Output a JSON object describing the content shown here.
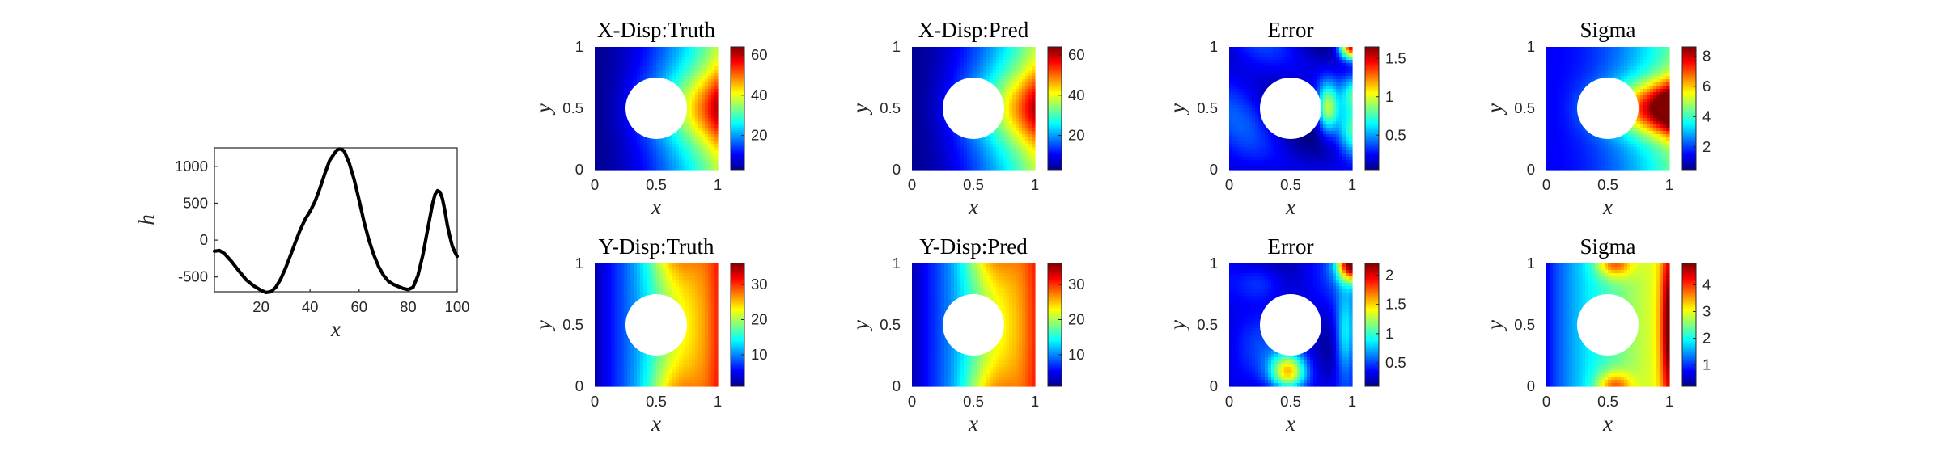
{
  "colors": {
    "line": "#000000",
    "axis": "#262626",
    "hole": "#ffffff",
    "colormap": "jet"
  },
  "chart_data": [
    {
      "type": "line",
      "title": "",
      "xlabel": "x",
      "ylabel": "h",
      "xlim": [
        1,
        100
      ],
      "ylim": [
        -700,
        1250
      ],
      "xticks": [
        "20",
        "40",
        "60",
        "80",
        "100"
      ],
      "yticks": [
        "-500",
        "0",
        "500",
        "1000"
      ],
      "grid": false,
      "series": [
        {
          "x": [
            1,
            3,
            5,
            8,
            11,
            14,
            17,
            20,
            22,
            24,
            26,
            28,
            30,
            32,
            34,
            36,
            38,
            40,
            42,
            44,
            46,
            48,
            50,
            51,
            52,
            53,
            54,
            56,
            58,
            60,
            62,
            64,
            66,
            68,
            70,
            72,
            74,
            76,
            78,
            80,
            82,
            84,
            86,
            88,
            90,
            91,
            92,
            93,
            94,
            95,
            96,
            97,
            98,
            99,
            100
          ],
          "y": [
            -150,
            -140,
            -180,
            -290,
            -420,
            -540,
            -620,
            -680,
            -710,
            -700,
            -640,
            -530,
            -380,
            -210,
            -30,
            140,
            280,
            390,
            520,
            700,
            900,
            1080,
            1180,
            1220,
            1235,
            1230,
            1200,
            1040,
            820,
            540,
            250,
            0,
            -200,
            -360,
            -480,
            -560,
            -600,
            -630,
            -655,
            -670,
            -640,
            -480,
            -200,
            150,
            500,
            620,
            670,
            650,
            560,
            400,
            200,
            50,
            -80,
            -160,
            -220
          ]
        }
      ]
    },
    {
      "type": "heatmap",
      "title": "X-Disp:Truth",
      "xlabel": "x",
      "ylabel": "y",
      "xlim": [
        0,
        1
      ],
      "ylim": [
        0,
        1
      ],
      "xticks": [
        "0",
        "0.5",
        "1"
      ],
      "yticks": [
        "0",
        "0.5",
        "1"
      ],
      "colorbar": {
        "range": [
          3,
          64
        ],
        "ticks": [
          "20",
          "40",
          "60"
        ],
        "tick_values": [
          20,
          40,
          60
        ]
      },
      "hole": {
        "center": [
          0.5,
          0.5
        ],
        "radius": 0.25
      }
    },
    {
      "type": "heatmap",
      "title": "X-Disp:Pred",
      "xlabel": "x",
      "ylabel": "y",
      "xlim": [
        0,
        1
      ],
      "ylim": [
        0,
        1
      ],
      "xticks": [
        "0",
        "0.5",
        "1"
      ],
      "yticks": [
        "0",
        "0.5",
        "1"
      ],
      "colorbar": {
        "range": [
          3,
          64
        ],
        "ticks": [
          "20",
          "40",
          "60"
        ],
        "tick_values": [
          20,
          40,
          60
        ]
      },
      "hole": {
        "center": [
          0.5,
          0.5
        ],
        "radius": 0.25
      }
    },
    {
      "type": "heatmap",
      "title": "Error",
      "xlabel": "x",
      "ylabel": "y",
      "xlim": [
        0,
        1
      ],
      "ylim": [
        0,
        1
      ],
      "xticks": [
        "0",
        "0.5",
        "1"
      ],
      "yticks": [
        "0",
        "0.5",
        "1"
      ],
      "colorbar": {
        "range": [
          0.05,
          1.65
        ],
        "ticks": [
          "0.5",
          "1",
          "1.5"
        ],
        "tick_values": [
          0.5,
          1,
          1.5
        ]
      },
      "hole": {
        "center": [
          0.5,
          0.5
        ],
        "radius": 0.25
      }
    },
    {
      "type": "heatmap",
      "title": "Sigma",
      "xlabel": "x",
      "ylabel": "y",
      "xlim": [
        0,
        1
      ],
      "ylim": [
        0,
        1
      ],
      "xticks": [
        "0",
        "0.5",
        "1"
      ],
      "yticks": [
        "0",
        "0.5",
        "1"
      ],
      "colorbar": {
        "range": [
          0.5,
          8.6
        ],
        "ticks": [
          "2",
          "4",
          "6",
          "8"
        ],
        "tick_values": [
          2,
          4,
          6,
          8
        ]
      },
      "hole": {
        "center": [
          0.5,
          0.5
        ],
        "radius": 0.25
      }
    },
    {
      "type": "heatmap",
      "title": "Y-Disp:Truth",
      "xlabel": "x",
      "ylabel": "y",
      "xlim": [
        0,
        1
      ],
      "ylim": [
        0,
        1
      ],
      "xticks": [
        "0",
        "0.5",
        "1"
      ],
      "yticks": [
        "0",
        "0.5",
        "1"
      ],
      "colorbar": {
        "range": [
          1,
          36
        ],
        "ticks": [
          "10",
          "20",
          "30"
        ],
        "tick_values": [
          10,
          20,
          30
        ]
      },
      "hole": {
        "center": [
          0.5,
          0.5
        ],
        "radius": 0.25
      }
    },
    {
      "type": "heatmap",
      "title": "Y-Disp:Pred",
      "xlabel": "x",
      "ylabel": "y",
      "xlim": [
        0,
        1
      ],
      "ylim": [
        0,
        1
      ],
      "xticks": [
        "0",
        "0.5",
        "1"
      ],
      "yticks": [
        "0",
        "0.5",
        "1"
      ],
      "colorbar": {
        "range": [
          1,
          36
        ],
        "ticks": [
          "10",
          "20",
          "30"
        ],
        "tick_values": [
          10,
          20,
          30
        ]
      },
      "hole": {
        "center": [
          0.5,
          0.5
        ],
        "radius": 0.25
      }
    },
    {
      "type": "heatmap",
      "title": "Error",
      "xlabel": "x",
      "ylabel": "y",
      "xlim": [
        0,
        1
      ],
      "ylim": [
        0,
        1
      ],
      "xticks": [
        "0",
        "0.5",
        "1"
      ],
      "yticks": [
        "0",
        "0.5",
        "1"
      ],
      "colorbar": {
        "range": [
          0.1,
          2.2
        ],
        "ticks": [
          "0.5",
          "1",
          "1.5",
          "2"
        ],
        "tick_values": [
          0.5,
          1,
          1.5,
          2
        ]
      },
      "hole": {
        "center": [
          0.5,
          0.5
        ],
        "radius": 0.25
      }
    },
    {
      "type": "heatmap",
      "title": "Sigma",
      "xlabel": "x",
      "ylabel": "y",
      "xlim": [
        0,
        1
      ],
      "ylim": [
        0,
        1
      ],
      "xticks": [
        "0",
        "0.5",
        "1"
      ],
      "yticks": [
        "0",
        "0.5",
        "1"
      ],
      "colorbar": {
        "range": [
          0.2,
          4.8
        ],
        "ticks": [
          "1",
          "2",
          "3",
          "4"
        ],
        "tick_values": [
          1,
          2,
          3,
          4
        ]
      },
      "hole": {
        "center": [
          0.5,
          0.5
        ],
        "radius": 0.25
      }
    }
  ]
}
